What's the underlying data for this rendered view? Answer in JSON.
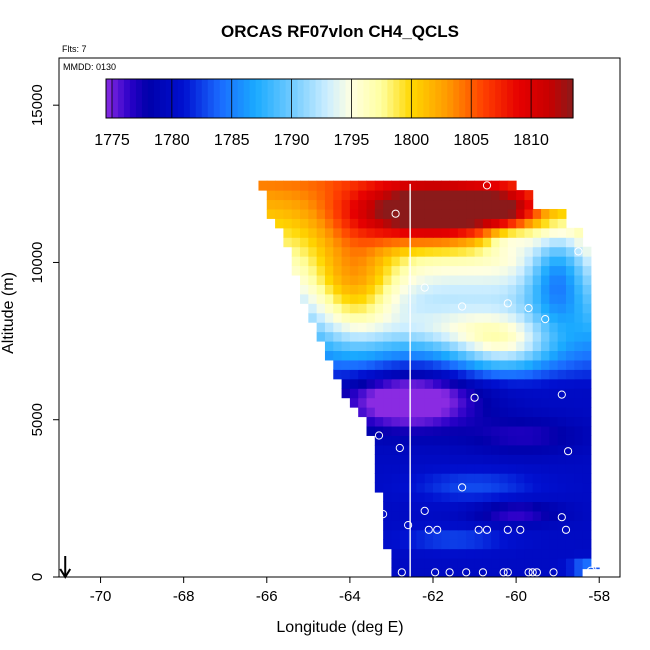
{
  "chart_data": {
    "type": "heatmap",
    "title": "ORCAS RF07vlon CH4_QCLS",
    "flights_label": "Flts: 7",
    "date_label": "MMDD: 0130",
    "xlabel": "Longitude (deg E)",
    "ylabel": "Altitude (m)",
    "xlim": [
      -71,
      -57.5
    ],
    "ylim": [
      0,
      16500
    ],
    "x_ticks": [
      -70,
      -68,
      -66,
      -64,
      -62,
      -60,
      -58
    ],
    "y_ticks": [
      0,
      5000,
      10000,
      15000
    ],
    "colorbar": {
      "range": [
        1774.5,
        1813.5
      ],
      "ticks": [
        1775,
        1780,
        1785,
        1790,
        1795,
        1800,
        1805,
        1810
      ],
      "stops": [
        {
          "v": 1774.5,
          "c": "#8a2be2"
        },
        {
          "v": 1776.5,
          "c": "#2a00c8"
        },
        {
          "v": 1778,
          "c": "#0000aa"
        },
        {
          "v": 1781,
          "c": "#0010d0"
        },
        {
          "v": 1784,
          "c": "#1a6aff"
        },
        {
          "v": 1787,
          "c": "#1aaaff"
        },
        {
          "v": 1790,
          "c": "#6fcaff"
        },
        {
          "v": 1793,
          "c": "#cdeeff"
        },
        {
          "v": 1795,
          "c": "#ffffe0"
        },
        {
          "v": 1797.5,
          "c": "#ffffa0"
        },
        {
          "v": 1800,
          "c": "#ffd700"
        },
        {
          "v": 1803,
          "c": "#ff9a00"
        },
        {
          "v": 1806,
          "c": "#ff4000"
        },
        {
          "v": 1809,
          "c": "#e60000"
        },
        {
          "v": 1811.5,
          "c": "#c80000"
        },
        {
          "v": 1813.5,
          "c": "#8b1a1a"
        }
      ]
    },
    "cursor_longitude": -62.55,
    "arrow_longitude": -70.85,
    "flight_points": [
      {
        "lon": -60.7,
        "alt": 12450
      },
      {
        "lon": -62.9,
        "alt": 11550
      },
      {
        "lon": -62.2,
        "alt": 9200
      },
      {
        "lon": -61.3,
        "alt": 8600
      },
      {
        "lon": -60.2,
        "alt": 8700
      },
      {
        "lon": -59.7,
        "alt": 8550
      },
      {
        "lon": -59.3,
        "alt": 8200
      },
      {
        "lon": -58.5,
        "alt": 10350
      },
      {
        "lon": -61.0,
        "alt": 5700
      },
      {
        "lon": -58.9,
        "alt": 5800
      },
      {
        "lon": -63.3,
        "alt": 4500
      },
      {
        "lon": -62.8,
        "alt": 4100
      },
      {
        "lon": -58.75,
        "alt": 4000
      },
      {
        "lon": -61.3,
        "alt": 2850
      },
      {
        "lon": -63.2,
        "alt": 2000
      },
      {
        "lon": -62.2,
        "alt": 2100
      },
      {
        "lon": -58.9,
        "alt": 1900
      },
      {
        "lon": -62.6,
        "alt": 1650
      },
      {
        "lon": -62.1,
        "alt": 1500
      },
      {
        "lon": -61.9,
        "alt": 1500
      },
      {
        "lon": -60.9,
        "alt": 1500
      },
      {
        "lon": -60.7,
        "alt": 1500
      },
      {
        "lon": -60.2,
        "alt": 1500
      },
      {
        "lon": -59.9,
        "alt": 1500
      },
      {
        "lon": -58.8,
        "alt": 1500
      },
      {
        "lon": -62.75,
        "alt": 150
      },
      {
        "lon": -61.95,
        "alt": 150
      },
      {
        "lon": -61.6,
        "alt": 150
      },
      {
        "lon": -61.2,
        "alt": 150
      },
      {
        "lon": -60.8,
        "alt": 150
      },
      {
        "lon": -60.3,
        "alt": 150
      },
      {
        "lon": -60.2,
        "alt": 150
      },
      {
        "lon": -59.7,
        "alt": 150
      },
      {
        "lon": -59.6,
        "alt": 150
      },
      {
        "lon": -59.5,
        "alt": 150
      },
      {
        "lon": -59.1,
        "alt": 150
      },
      {
        "lon": -58.2,
        "alt": 200
      },
      {
        "lon": -58.0,
        "alt": 300
      }
    ]
  }
}
